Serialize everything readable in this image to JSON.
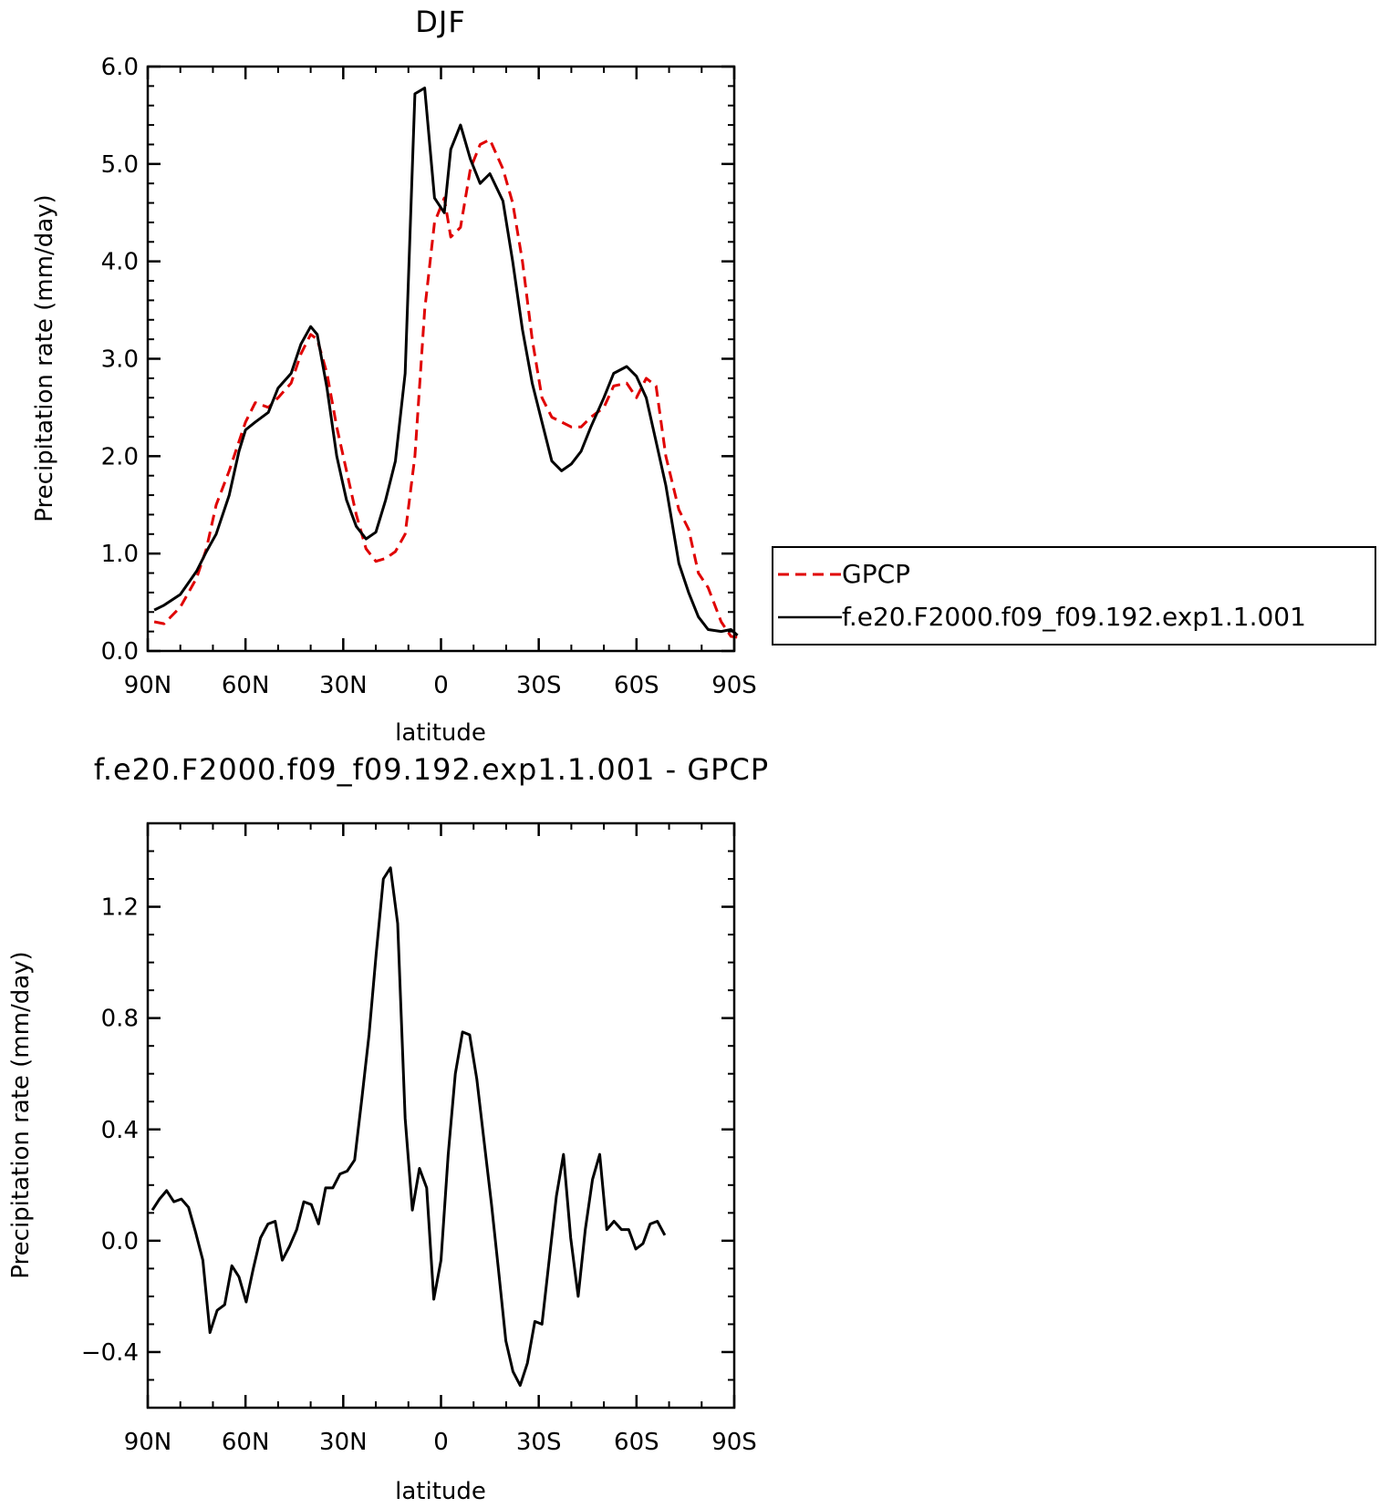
{
  "chart_data": [
    {
      "type": "line",
      "title": "DJF",
      "xlabel": "latitude",
      "ylabel": "Precipitation rate (mm/day)",
      "xlim": [
        90,
        -90
      ],
      "ylim": [
        0,
        6
      ],
      "xticks": [
        {
          "value": 90,
          "label": "90N"
        },
        {
          "value": 60,
          "label": "60N"
        },
        {
          "value": 30,
          "label": "30N"
        },
        {
          "value": 0,
          "label": "0"
        },
        {
          "value": -30,
          "label": "30S"
        },
        {
          "value": -60,
          "label": "60S"
        },
        {
          "value": -90,
          "label": "90S"
        }
      ],
      "yticks": [
        {
          "value": 0,
          "label": "0.0"
        },
        {
          "value": 1,
          "label": "1.0"
        },
        {
          "value": 2,
          "label": "2.0"
        },
        {
          "value": 3,
          "label": "3.0"
        },
        {
          "value": 4,
          "label": "4.0"
        },
        {
          "value": 5,
          "label": "5.0"
        },
        {
          "value": 6,
          "label": "6.0"
        }
      ],
      "legend_position": "outside-right",
      "series": [
        {
          "name": "GPCP",
          "color": "#e00000",
          "dash": "dashed",
          "points": [
            [
              88,
              0.3
            ],
            [
              85,
              0.28
            ],
            [
              80,
              0.45
            ],
            [
              75,
              0.75
            ],
            [
              72,
              1.05
            ],
            [
              69,
              1.5
            ],
            [
              65,
              1.85
            ],
            [
              62,
              2.15
            ],
            [
              60,
              2.35
            ],
            [
              57,
              2.55
            ],
            [
              53,
              2.5
            ],
            [
              50,
              2.6
            ],
            [
              46,
              2.75
            ],
            [
              43,
              3.05
            ],
            [
              40,
              3.25
            ],
            [
              38,
              3.2
            ],
            [
              35,
              2.85
            ],
            [
              32,
              2.3
            ],
            [
              29,
              1.85
            ],
            [
              26,
              1.4
            ],
            [
              23,
              1.05
            ],
            [
              20,
              0.92
            ],
            [
              17,
              0.95
            ],
            [
              14,
              1.02
            ],
            [
              11,
              1.2
            ],
            [
              8,
              2.0
            ],
            [
              5,
              3.5
            ],
            [
              2,
              4.4
            ],
            [
              -1,
              4.65
            ],
            [
              -3,
              4.25
            ],
            [
              -6,
              4.35
            ],
            [
              -9,
              4.95
            ],
            [
              -12,
              5.2
            ],
            [
              -15,
              5.25
            ],
            [
              -19,
              4.95
            ],
            [
              -22,
              4.6
            ],
            [
              -25,
              4.0
            ],
            [
              -28,
              3.2
            ],
            [
              -31,
              2.6
            ],
            [
              -34,
              2.4
            ],
            [
              -37,
              2.35
            ],
            [
              -40,
              2.3
            ],
            [
              -43,
              2.3
            ],
            [
              -46,
              2.4
            ],
            [
              -50,
              2.5
            ],
            [
              -53,
              2.72
            ],
            [
              -57,
              2.75
            ],
            [
              -60,
              2.6
            ],
            [
              -63,
              2.8
            ],
            [
              -66,
              2.72
            ],
            [
              -69,
              2.0
            ],
            [
              -73,
              1.45
            ],
            [
              -76,
              1.25
            ],
            [
              -79,
              0.8
            ],
            [
              -82,
              0.65
            ],
            [
              -86,
              0.3
            ],
            [
              -89,
              0.15
            ],
            [
              -91,
              0.14
            ]
          ]
        },
        {
          "name": "f.e20.F2000.f09_f09.192.exp1.1.001",
          "color": "#000000",
          "dash": "solid",
          "points": [
            [
              88,
              0.42
            ],
            [
              85,
              0.47
            ],
            [
              80,
              0.58
            ],
            [
              75,
              0.82
            ],
            [
              72,
              1.02
            ],
            [
              69,
              1.2
            ],
            [
              65,
              1.6
            ],
            [
              62,
              2.05
            ],
            [
              60,
              2.27
            ],
            [
              57,
              2.35
            ],
            [
              53,
              2.45
            ],
            [
              50,
              2.7
            ],
            [
              46,
              2.85
            ],
            [
              43,
              3.15
            ],
            [
              40,
              3.33
            ],
            [
              38,
              3.25
            ],
            [
              35,
              2.7
            ],
            [
              32,
              2.0
            ],
            [
              29,
              1.55
            ],
            [
              26,
              1.28
            ],
            [
              23,
              1.15
            ],
            [
              20,
              1.22
            ],
            [
              17,
              1.55
            ],
            [
              14,
              1.95
            ],
            [
              11,
              2.85
            ],
            [
              8,
              5.72
            ],
            [
              5,
              5.78
            ],
            [
              2,
              4.65
            ],
            [
              -1,
              4.5
            ],
            [
              -3,
              5.15
            ],
            [
              -6,
              5.4
            ],
            [
              -9,
              5.05
            ],
            [
              -12,
              4.8
            ],
            [
              -15,
              4.9
            ],
            [
              -19,
              4.62
            ],
            [
              -22,
              4.0
            ],
            [
              -25,
              3.3
            ],
            [
              -28,
              2.75
            ],
            [
              -31,
              2.35
            ],
            [
              -34,
              1.95
            ],
            [
              -37,
              1.85
            ],
            [
              -40,
              1.92
            ],
            [
              -43,
              2.05
            ],
            [
              -46,
              2.3
            ],
            [
              -50,
              2.6
            ],
            [
              -53,
              2.85
            ],
            [
              -57,
              2.92
            ],
            [
              -60,
              2.82
            ],
            [
              -63,
              2.6
            ],
            [
              -66,
              2.15
            ],
            [
              -69,
              1.7
            ],
            [
              -73,
              0.9
            ],
            [
              -76,
              0.6
            ],
            [
              -79,
              0.35
            ],
            [
              -82,
              0.22
            ],
            [
              -86,
              0.2
            ],
            [
              -89,
              0.22
            ],
            [
              -91,
              0.16
            ]
          ]
        }
      ]
    },
    {
      "type": "line",
      "title": "f.e20.F2000.f09_f09.192.exp1.1.001 - GPCP",
      "xlabel": "latitude",
      "ylabel": "Precipitation rate (mm/day)",
      "xlim": [
        90,
        -90
      ],
      "ylim": [
        -0.6,
        1.5
      ],
      "xticks": [
        {
          "value": 90,
          "label": "90N"
        },
        {
          "value": 60,
          "label": "60N"
        },
        {
          "value": 30,
          "label": "30N"
        },
        {
          "value": 0,
          "label": "0"
        },
        {
          "value": -30,
          "label": "30S"
        },
        {
          "value": -60,
          "label": "60S"
        },
        {
          "value": -90,
          "label": "90S"
        }
      ],
      "yticks": [
        {
          "value": -0.4,
          "label": "−0.4"
        },
        {
          "value": 0,
          "label": "0.0"
        },
        {
          "value": 0.4,
          "label": "0.4"
        },
        {
          "value": 0.8,
          "label": "0.8"
        },
        {
          "value": 1.2,
          "label": "1.2"
        }
      ],
      "series": [
        {
          "color": "#000000",
          "dash": "solid",
          "points": [
            [
              88.6,
              0.11
            ],
            [
              86.4,
              0.15
            ],
            [
              84.2,
              0.18
            ],
            [
              82,
              0.14
            ],
            [
              79.7,
              0.15
            ],
            [
              77.5,
              0.12
            ],
            [
              75.3,
              0.03
            ],
            [
              73.1,
              -0.07
            ],
            [
              70.9,
              -0.33
            ],
            [
              68.7,
              -0.25
            ],
            [
              66.4,
              -0.23
            ],
            [
              64.2,
              -0.09
            ],
            [
              62,
              -0.13
            ],
            [
              59.8,
              -0.22
            ],
            [
              57.6,
              -0.1
            ],
            [
              55.4,
              0.01
            ],
            [
              53.1,
              0.06
            ],
            [
              50.9,
              0.07
            ],
            [
              48.7,
              -0.07
            ],
            [
              46.5,
              -0.02
            ],
            [
              44.3,
              0.04
            ],
            [
              42.1,
              0.14
            ],
            [
              39.8,
              0.13
            ],
            [
              37.6,
              0.06
            ],
            [
              35.4,
              0.19
            ],
            [
              33.2,
              0.19
            ],
            [
              31,
              0.24
            ],
            [
              28.8,
              0.25
            ],
            [
              26.5,
              0.29
            ],
            [
              24.3,
              0.51
            ],
            [
              22.1,
              0.74
            ],
            [
              19.9,
              1.03
            ],
            [
              17.7,
              1.3
            ],
            [
              15.5,
              1.34
            ],
            [
              13.3,
              1.14
            ],
            [
              11,
              0.44
            ],
            [
              8.8,
              0.11
            ],
            [
              6.6,
              0.26
            ],
            [
              4.4,
              0.19
            ],
            [
              2.2,
              -0.21
            ],
            [
              0,
              -0.07
            ],
            [
              -2.2,
              0.31
            ],
            [
              -4.4,
              0.6
            ],
            [
              -6.6,
              0.75
            ],
            [
              -8.8,
              0.74
            ],
            [
              -11,
              0.58
            ],
            [
              -13.3,
              0.35
            ],
            [
              -15.5,
              0.13
            ],
            [
              -17.7,
              -0.11
            ],
            [
              -19.9,
              -0.36
            ],
            [
              -22.1,
              -0.47
            ],
            [
              -24.3,
              -0.52
            ],
            [
              -26.5,
              -0.44
            ],
            [
              -28.8,
              -0.29
            ],
            [
              -31,
              -0.3
            ],
            [
              -33.2,
              -0.07
            ],
            [
              -35.4,
              0.16
            ],
            [
              -37.6,
              0.31
            ],
            [
              -39.8,
              0.01
            ],
            [
              -42.1,
              -0.2
            ],
            [
              -44.3,
              0.04
            ],
            [
              -46.5,
              0.22
            ],
            [
              -48.7,
              0.31
            ],
            [
              -50.9,
              0.04
            ],
            [
              -53.1,
              0.07
            ],
            [
              -55.4,
              0.04
            ],
            [
              -57.6,
              0.04
            ],
            [
              -59.8,
              -0.03
            ],
            [
              -62,
              -0.01
            ],
            [
              -64.2,
              0.06
            ],
            [
              -66.4,
              0.07
            ],
            [
              -68.7,
              0.02
            ]
          ]
        }
      ]
    }
  ]
}
